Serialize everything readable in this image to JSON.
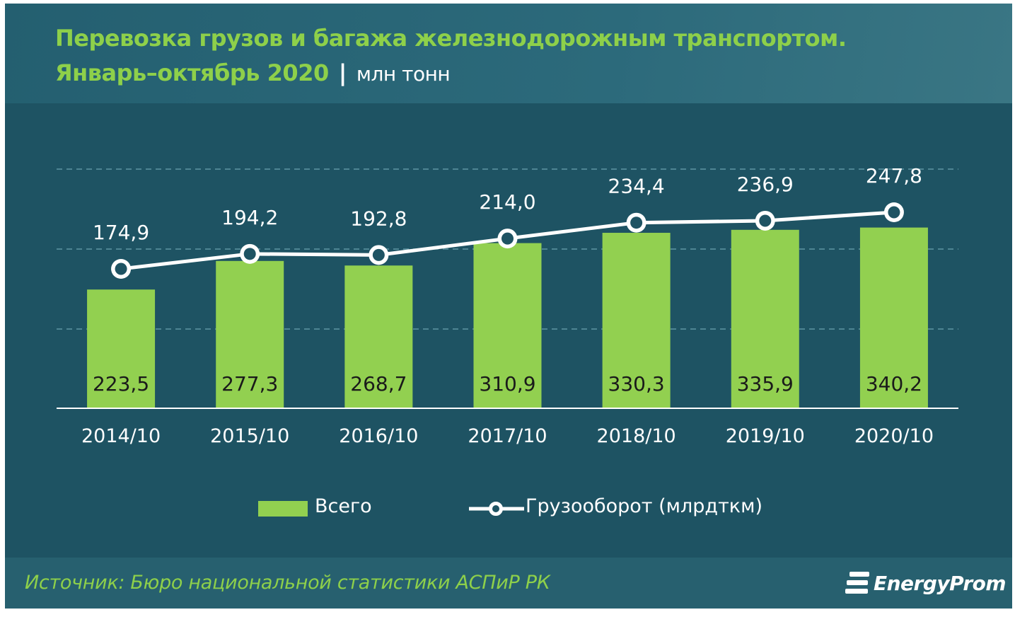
{
  "header": {
    "title_line1": "Перевозка грузов и багажа железнодорожным транспортом.",
    "period": "Январь–октябрь 2020",
    "separator": "|",
    "unit": "млн тонн"
  },
  "chart_data": {
    "type": "bar",
    "categories": [
      "2014/10",
      "2015/10",
      "2016/10",
      "2017/10",
      "2018/10",
      "2019/10",
      "2020/10"
    ],
    "series": [
      {
        "name": "Всего",
        "type": "bar",
        "values": [
          223.5,
          277.3,
          268.7,
          310.9,
          330.3,
          335.9,
          340.2
        ],
        "labels": [
          "223,5",
          "277,3",
          "268,7",
          "310,9",
          "330,3",
          "335,9",
          "340,2"
        ],
        "color": "#92d050"
      },
      {
        "name": "Грузооборот (млрдткм)",
        "type": "line",
        "values": [
          174.9,
          194.2,
          192.8,
          214.0,
          234.4,
          236.9,
          247.8
        ],
        "labels": [
          "174,9",
          "194,2",
          "192,8",
          "214,0",
          "234,4",
          "236,9",
          "247,8"
        ],
        "color": "#ffffff"
      }
    ],
    "grid": true,
    "legend_position": "bottom"
  },
  "footer": {
    "source": "Источник: Бюро национальной  статистики АСПиР РК",
    "brand": "EnergyProm"
  },
  "colors": {
    "background": "#1e5363",
    "accent_green": "#92d050",
    "title_green": "#8ed04a",
    "line": "#ffffff"
  }
}
